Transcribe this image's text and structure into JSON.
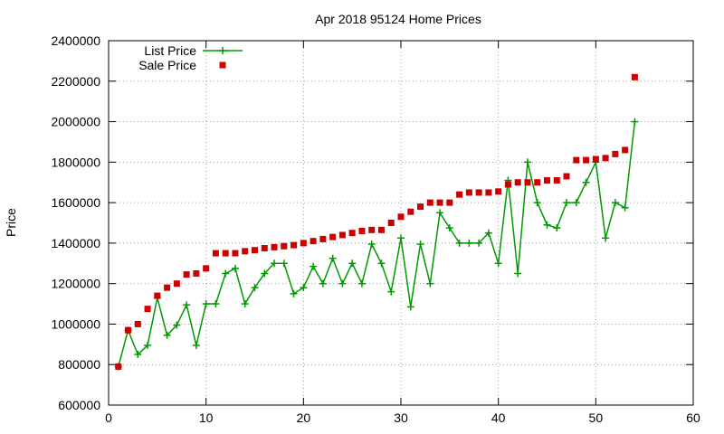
{
  "chart_data": {
    "type": "line",
    "title": "Apr 2018 95124 Home Prices",
    "xlabel": "",
    "ylabel": "Price",
    "xlim": [
      0,
      60
    ],
    "ylim": [
      600000,
      2400000
    ],
    "x_ticks": [
      0,
      10,
      20,
      30,
      40,
      50,
      60
    ],
    "y_ticks": [
      600000,
      800000,
      1000000,
      1200000,
      1400000,
      1600000,
      1800000,
      2000000,
      2200000,
      2400000
    ],
    "grid": true,
    "legend_position": "top-left",
    "series": [
      {
        "name": "List Price",
        "style": "lines+crosses",
        "color": "#009900",
        "x": [
          1,
          2,
          3,
          4,
          5,
          6,
          7,
          8,
          9,
          10,
          11,
          12,
          13,
          14,
          15,
          16,
          17,
          18,
          19,
          20,
          21,
          22,
          23,
          24,
          25,
          26,
          27,
          28,
          29,
          30,
          31,
          32,
          33,
          34,
          35,
          36,
          37,
          38,
          39,
          40,
          41,
          42,
          43,
          44,
          45,
          46,
          47,
          48,
          49,
          50,
          51,
          52,
          53,
          54
        ],
        "y": [
          790000,
          970000,
          850000,
          895000,
          1130000,
          945000,
          995000,
          1095000,
          895000,
          1100000,
          1100000,
          1250000,
          1275000,
          1100000,
          1180000,
          1250000,
          1300000,
          1300000,
          1150000,
          1180000,
          1285000,
          1200000,
          1325000,
          1200000,
          1300000,
          1200000,
          1395000,
          1300000,
          1160000,
          1425000,
          1085000,
          1395000,
          1200000,
          1550000,
          1475000,
          1400000,
          1400000,
          1400000,
          1450000,
          1300000,
          1710000,
          1250000,
          1800000,
          1600000,
          1490000,
          1475000,
          1600000,
          1600000,
          1700000,
          1800000,
          1425000,
          1600000,
          1575000,
          2000000
        ]
      },
      {
        "name": "Sale Price",
        "style": "points-square",
        "color": "#cc0000",
        "x": [
          1,
          2,
          3,
          4,
          5,
          6,
          7,
          8,
          9,
          10,
          11,
          12,
          13,
          14,
          15,
          16,
          17,
          18,
          19,
          20,
          21,
          22,
          23,
          24,
          25,
          26,
          27,
          28,
          29,
          30,
          31,
          32,
          33,
          34,
          35,
          36,
          37,
          38,
          39,
          40,
          41,
          42,
          43,
          44,
          45,
          46,
          47,
          48,
          49,
          50,
          51,
          52,
          53,
          54
        ],
        "y": [
          790000,
          970000,
          1000000,
          1075000,
          1140000,
          1180000,
          1200000,
          1245000,
          1250000,
          1275000,
          1350000,
          1350000,
          1350000,
          1360000,
          1365000,
          1375000,
          1380000,
          1385000,
          1390000,
          1400000,
          1410000,
          1420000,
          1430000,
          1440000,
          1450000,
          1460000,
          1465000,
          1465000,
          1500000,
          1530000,
          1555000,
          1580000,
          1600000,
          1600000,
          1600000,
          1640000,
          1650000,
          1650000,
          1650000,
          1655000,
          1690000,
          1700000,
          1700000,
          1700000,
          1710000,
          1710000,
          1730000,
          1810000,
          1810000,
          1815000,
          1820000,
          1840000,
          1860000,
          2220000
        ]
      }
    ]
  }
}
